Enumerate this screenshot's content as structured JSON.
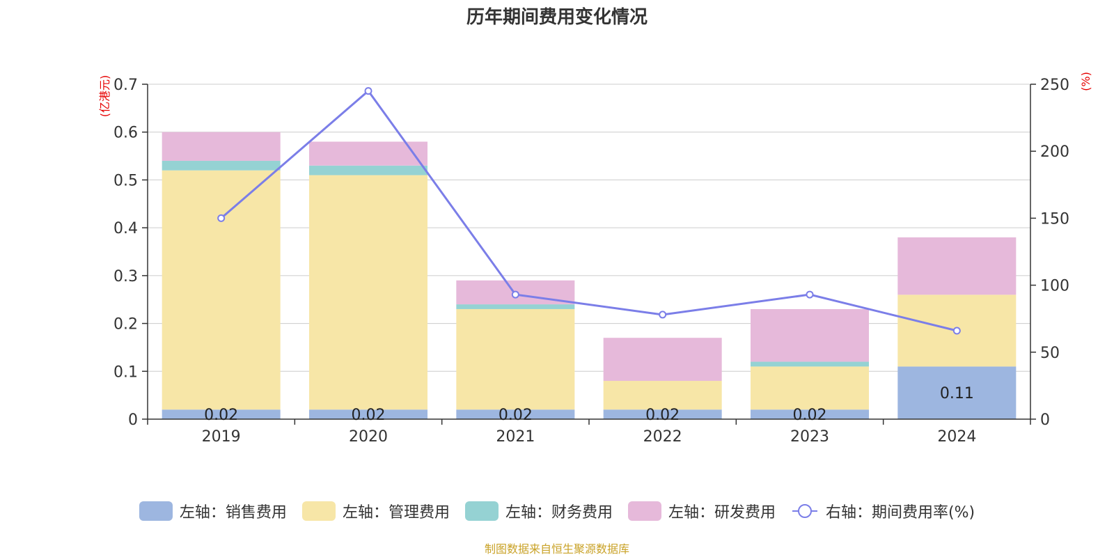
{
  "title": "历年期间费用变化情况",
  "source": "制图数据来自恒生聚源数据库",
  "colors": {
    "sales": "#9db6e0",
    "admin": "#f7e6a7",
    "finance": "#95d2d3",
    "rnd": "#e6b9da",
    "rate": "#7b7ee8",
    "unit_text": "#e60000",
    "grid": "#cccccc",
    "axis": "#333333",
    "source": "#c9a227"
  },
  "legend": [
    {
      "key": "sales",
      "label": "左轴：销售费用"
    },
    {
      "key": "admin",
      "label": "左轴：管理费用"
    },
    {
      "key": "finance",
      "label": "左轴：财务费用"
    },
    {
      "key": "rnd",
      "label": "左轴：研发费用"
    },
    {
      "key": "rate",
      "label": "右轴：期间费用率(%)"
    }
  ],
  "chart_data": {
    "type": "bar",
    "stacked": true,
    "categories": [
      "2019",
      "2020",
      "2021",
      "2022",
      "2023",
      "2024"
    ],
    "series": [
      {
        "name": "左轴：销售费用",
        "key": "sales",
        "axis": "left",
        "values": [
          0.02,
          0.02,
          0.02,
          0.02,
          0.02,
          0.11
        ]
      },
      {
        "name": "左轴：管理费用",
        "key": "admin",
        "axis": "left",
        "values": [
          0.5,
          0.49,
          0.21,
          0.06,
          0.09,
          0.15
        ]
      },
      {
        "name": "左轴：财务费用",
        "key": "finance",
        "axis": "left",
        "values": [
          0.02,
          0.02,
          0.01,
          0.0,
          0.01,
          0.0
        ]
      },
      {
        "name": "左轴：研发费用",
        "key": "rnd",
        "axis": "left",
        "values": [
          0.06,
          0.05,
          0.05,
          0.09,
          0.11,
          0.12
        ]
      },
      {
        "name": "右轴：期间费用率(%)",
        "key": "rate",
        "axis": "right",
        "type": "line",
        "values": [
          150,
          245,
          93,
          78,
          93,
          66
        ]
      }
    ],
    "data_labels": {
      "series": "sales",
      "values": [
        "0.02",
        "0.02",
        "0.02",
        "0.02",
        "0.02",
        "0.11"
      ]
    },
    "left_axis": {
      "unit_label": "(亿港元)",
      "min": 0,
      "max": 0.7,
      "ticks": [
        "0",
        "0.1",
        "0.2",
        "0.3",
        "0.4",
        "0.5",
        "0.6",
        "0.7"
      ]
    },
    "right_axis": {
      "unit_label": "(%)",
      "min": 0,
      "max": 250,
      "ticks": [
        "0",
        "50",
        "100",
        "150",
        "200",
        "250"
      ]
    },
    "grid": true,
    "legend_position": "bottom"
  }
}
